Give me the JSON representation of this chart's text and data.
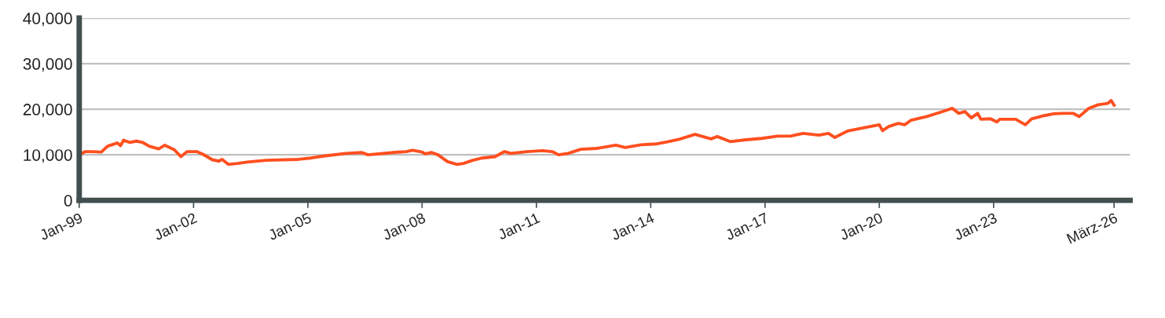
{
  "chart_data": {
    "type": "line",
    "x": [
      "1999-01",
      "1999-03",
      "1999-05",
      "1999-08",
      "1999-10",
      "2000-01",
      "2000-02",
      "2000-03",
      "2000-05",
      "2000-07",
      "2000-09",
      "2000-11",
      "2001-02",
      "2001-04",
      "2001-07",
      "2001-09",
      "2001-11",
      "2002-02",
      "2002-04",
      "2002-07",
      "2002-09",
      "2002-10",
      "2002-12",
      "2003-03",
      "2003-06",
      "2003-12",
      "2004-10",
      "2005-02",
      "2005-07",
      "2006-01",
      "2006-06",
      "2006-08",
      "2007-04",
      "2007-08",
      "2007-10",
      "2008-01",
      "2008-02",
      "2008-04",
      "2008-06",
      "2008-09",
      "2008-12",
      "2009-02",
      "2009-05",
      "2009-08",
      "2009-12",
      "2010-03",
      "2010-05",
      "2010-10",
      "2011-03",
      "2011-06",
      "2011-08",
      "2011-11",
      "2012-03",
      "2012-08",
      "2013-02",
      "2013-05",
      "2013-10",
      "2014-03",
      "2014-06",
      "2014-10",
      "2015-03",
      "2015-05",
      "2015-08",
      "2015-10",
      "2016-02",
      "2016-07",
      "2016-12",
      "2017-05",
      "2017-09",
      "2018-01",
      "2018-06",
      "2018-09",
      "2018-11",
      "2019-03",
      "2019-08",
      "2020-01",
      "2020-02",
      "2020-04",
      "2020-07",
      "2020-09",
      "2020-11",
      "2021-04",
      "2021-09",
      "2021-12",
      "2022-02",
      "2022-04",
      "2022-06",
      "2022-08",
      "2022-09",
      "2022-12",
      "2023-02",
      "2023-03",
      "2023-08",
      "2023-11",
      "2024-01",
      "2024-05",
      "2024-08",
      "2024-11",
      "2025-02",
      "2025-04",
      "2025-07",
      "2025-10",
      "2026-01",
      "2026-02",
      "2026-03"
    ],
    "series": [
      {
        "color": "#ff4f1f",
        "values": [
          10000,
          10700,
          10700,
          10600,
          11900,
          12600,
          12000,
          13200,
          12700,
          13000,
          12700,
          11900,
          11300,
          12100,
          11100,
          9600,
          10700,
          10700,
          10100,
          8900,
          8600,
          9000,
          7900,
          8100,
          8400,
          8800,
          9000,
          9300,
          9800,
          10300,
          10500,
          10000,
          10500,
          10700,
          11000,
          10600,
          10200,
          10500,
          10000,
          8500,
          7900,
          8100,
          8800,
          9300,
          9600,
          10700,
          10300,
          10700,
          10900,
          10700,
          10000,
          10300,
          11200,
          11400,
          12100,
          11600,
          12200,
          12400,
          12800,
          13400,
          14500,
          14100,
          13500,
          14000,
          12900,
          13300,
          13600,
          14100,
          14100,
          14700,
          14300,
          14700,
          13800,
          15200,
          15900,
          16600,
          15300,
          16200,
          16900,
          16600,
          17600,
          18400,
          19500,
          20200,
          19100,
          19500,
          18100,
          19100,
          17800,
          17900,
          17200,
          17800,
          17800,
          16600,
          17900,
          18600,
          19000,
          19100,
          19100,
          18400,
          20200,
          21000,
          21300,
          21900,
          20900
        ]
      }
    ],
    "xlim": [
      "1999-01",
      "2026-08"
    ],
    "xticks": [
      {
        "value": "1999-01",
        "label": "Jan-99"
      },
      {
        "value": "2002-01",
        "label": "Jan-02"
      },
      {
        "value": "2005-01",
        "label": "Jan-05"
      },
      {
        "value": "2008-01",
        "label": "Jan-08"
      },
      {
        "value": "2011-01",
        "label": "Jan-11"
      },
      {
        "value": "2014-01",
        "label": "Jan-14"
      },
      {
        "value": "2017-01",
        "label": "Jan-17"
      },
      {
        "value": "2020-01",
        "label": "Jan-20"
      },
      {
        "value": "2023-01",
        "label": "Jan-23"
      },
      {
        "value": "2026-03",
        "label": "März-26"
      }
    ],
    "ylim": [
      0,
      40000
    ],
    "yticks": [
      0,
      {
        "value": 10000,
        "label": "10,000"
      },
      {
        "value": 20000,
        "label": "20,000"
      },
      {
        "value": 30000,
        "label": "30,000"
      },
      {
        "value": 40000,
        "label": "40,000"
      }
    ],
    "grid": "y",
    "marker": "none",
    "line_style": "solid"
  }
}
